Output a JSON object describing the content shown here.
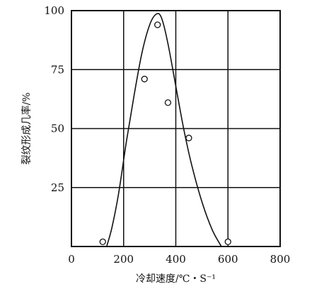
{
  "chart_data": {
    "type": "scatter",
    "title": "",
    "xlabel": "冷却速度/℃・S⁻¹",
    "ylabel": "裂纹形成几率/%",
    "xlim": [
      0,
      800
    ],
    "ylim": [
      0,
      100
    ],
    "x_ticks": [
      "0",
      "200",
      "400",
      "600",
      "800"
    ],
    "y_ticks": [
      "25",
      "50",
      "75",
      "100"
    ],
    "grid": true,
    "series": [
      {
        "kind": "points",
        "marker": "open-circle",
        "points": [
          {
            "x": 120,
            "y": 2
          },
          {
            "x": 280,
            "y": 71
          },
          {
            "x": 330,
            "y": 94
          },
          {
            "x": 370,
            "y": 61
          },
          {
            "x": 450,
            "y": 46
          },
          {
            "x": 600,
            "y": 2
          }
        ]
      },
      {
        "kind": "curve",
        "points": [
          {
            "x": 135,
            "y": 0
          },
          {
            "x": 155,
            "y": 8
          },
          {
            "x": 180,
            "y": 22
          },
          {
            "x": 210,
            "y": 44
          },
          {
            "x": 240,
            "y": 64
          },
          {
            "x": 270,
            "y": 82
          },
          {
            "x": 300,
            "y": 94
          },
          {
            "x": 325,
            "y": 98.5
          },
          {
            "x": 345,
            "y": 97
          },
          {
            "x": 370,
            "y": 86
          },
          {
            "x": 400,
            "y": 68
          },
          {
            "x": 430,
            "y": 50
          },
          {
            "x": 460,
            "y": 35
          },
          {
            "x": 500,
            "y": 19
          },
          {
            "x": 540,
            "y": 7
          },
          {
            "x": 575,
            "y": 0
          }
        ]
      }
    ]
  }
}
